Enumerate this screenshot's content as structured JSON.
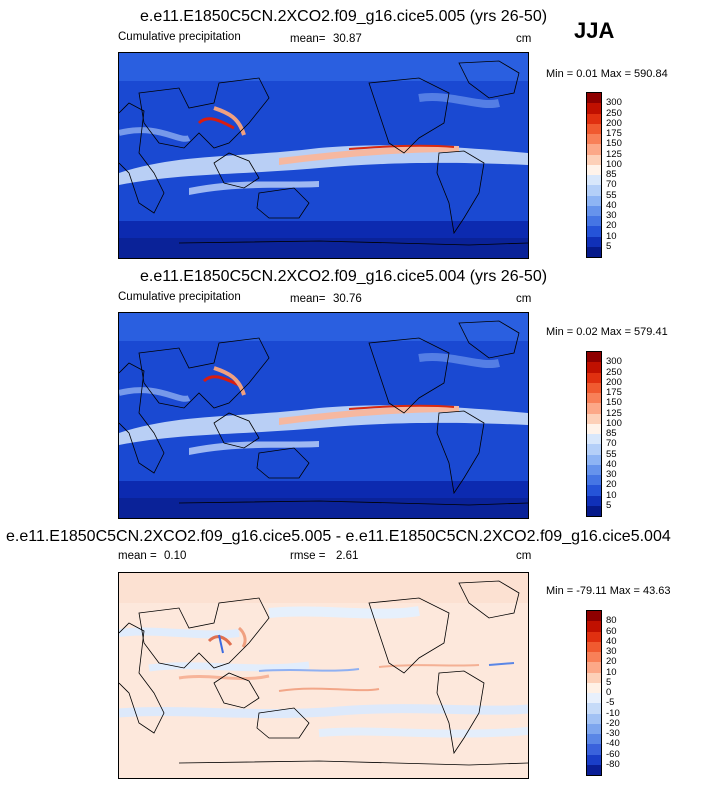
{
  "season": "JJA",
  "panels": [
    {
      "title": "e.e11.E1850C5CN.2XCO2.f09_g16.cice5.005 (yrs 26-50)",
      "variable": "Cumulative precipitation",
      "stat_label": "mean=",
      "stat_value": "30.87",
      "units": "cm",
      "minmax": "Min =   0.01 Max = 590.84",
      "colorbar_labels": [
        "300",
        "250",
        "200",
        "175",
        "150",
        "125",
        "100",
        "85",
        "70",
        "55",
        "40",
        "30",
        "20",
        "10",
        "5"
      ],
      "colorbar_colors": [
        "#8e0000",
        "#c01000",
        "#e03010",
        "#f05a30",
        "#f88058",
        "#fca888",
        "#fdd0b8",
        "#fff3ea",
        "#d8e7fb",
        "#b4cff8",
        "#8eb4f4",
        "#6693ec",
        "#4575e4",
        "#2553d8",
        "#1030b8",
        "#061a8a"
      ]
    },
    {
      "title": "e.e11.E1850C5CN.2XCO2.f09_g16.cice5.004 (yrs 26-50)",
      "variable": "Cumulative precipitation",
      "stat_label": "mean=",
      "stat_value": "30.76",
      "units": "cm",
      "minmax": "Min =   0.02 Max = 579.41",
      "colorbar_labels": [
        "300",
        "250",
        "200",
        "175",
        "150",
        "125",
        "100",
        "85",
        "70",
        "55",
        "40",
        "30",
        "20",
        "10",
        "5"
      ],
      "colorbar_colors": [
        "#8e0000",
        "#c01000",
        "#e03010",
        "#f05a30",
        "#f88058",
        "#fca888",
        "#fdd0b8",
        "#fff3ea",
        "#d8e7fb",
        "#b4cff8",
        "#8eb4f4",
        "#6693ec",
        "#4575e4",
        "#2553d8",
        "#1030b8",
        "#061a8a"
      ]
    },
    {
      "title": "e.e11.E1850C5CN.2XCO2.f09_g16.cice5.005 - e.e11.E1850C5CN.2XCO2.f09_g16.cice5.004",
      "stat_label": "mean =",
      "stat_value": "0.10",
      "stat2_label": "rmse =",
      "stat2_value": "2.61",
      "units": "cm",
      "minmax": "Min = -79.11 Max =  43.63",
      "colorbar_labels": [
        "80",
        "60",
        "40",
        "30",
        "20",
        "10",
        "5",
        "0",
        "-5",
        "-10",
        "-20",
        "-30",
        "-40",
        "-60",
        "-80"
      ],
      "colorbar_colors": [
        "#8e0000",
        "#c01000",
        "#e03010",
        "#f05a30",
        "#f88058",
        "#fca888",
        "#fdd0b8",
        "#fff1e6",
        "#e8f0fc",
        "#c6dbf8",
        "#a2c2f4",
        "#7ea6ee",
        "#5a86e6",
        "#3a62dc",
        "#1a3ec8",
        "#0a1e96"
      ]
    }
  ]
}
